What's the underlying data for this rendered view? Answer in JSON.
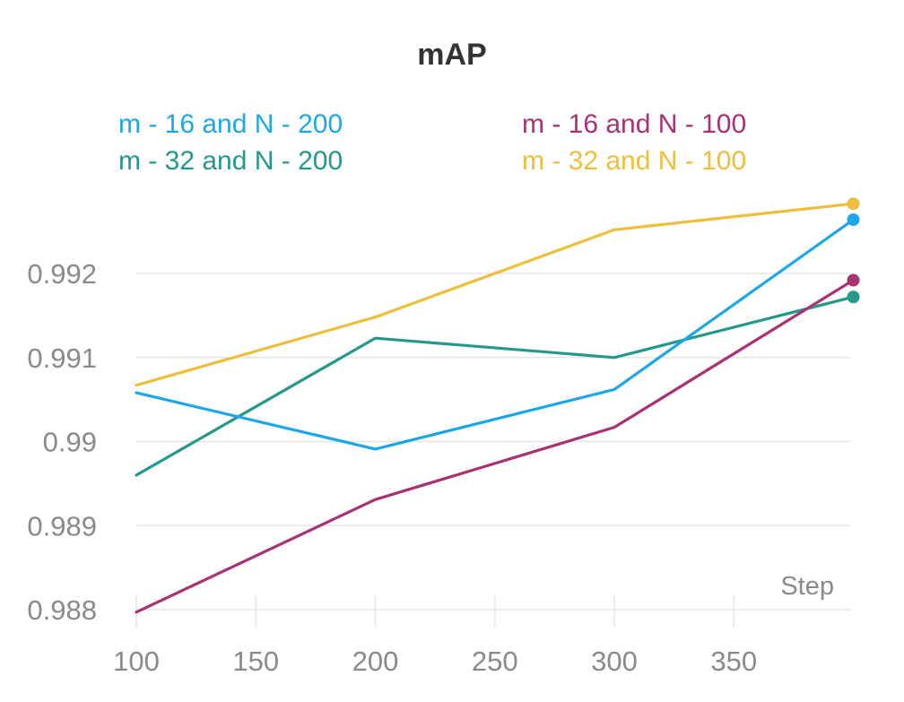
{
  "chart_data": {
    "type": "line",
    "title": "mAP",
    "xlabel": "Step",
    "ylabel": "",
    "xlim": [
      100,
      400
    ],
    "ylim": [
      0.988,
      0.9928
    ],
    "x_ticks": [
      100,
      150,
      200,
      250,
      300,
      350
    ],
    "y_ticks": [
      0.988,
      0.989,
      0.99,
      0.991,
      0.992
    ],
    "y_tick_labels": [
      "0.988",
      "0.989",
      "0.99",
      "0.991",
      "0.992"
    ],
    "x": [
      100,
      200,
      300,
      400
    ],
    "series": [
      {
        "name": "m - 16 and N - 200",
        "color": "#1ea7e8",
        "values": [
          0.99058,
          0.98991,
          0.99062,
          0.99264
        ]
      },
      {
        "name": "m - 32 and N - 200",
        "color": "#25988a",
        "values": [
          0.9896,
          0.99123,
          0.991,
          0.99172
        ]
      },
      {
        "name": "m - 16 and N - 100",
        "color": "#a83272",
        "values": [
          0.98797,
          0.98931,
          0.99017,
          0.99192
        ]
      },
      {
        "name": "m - 32 and N - 100",
        "color": "#eebf3c",
        "values": [
          0.99067,
          0.99148,
          0.99252,
          0.99283
        ]
      }
    ],
    "legend_position": "top"
  }
}
